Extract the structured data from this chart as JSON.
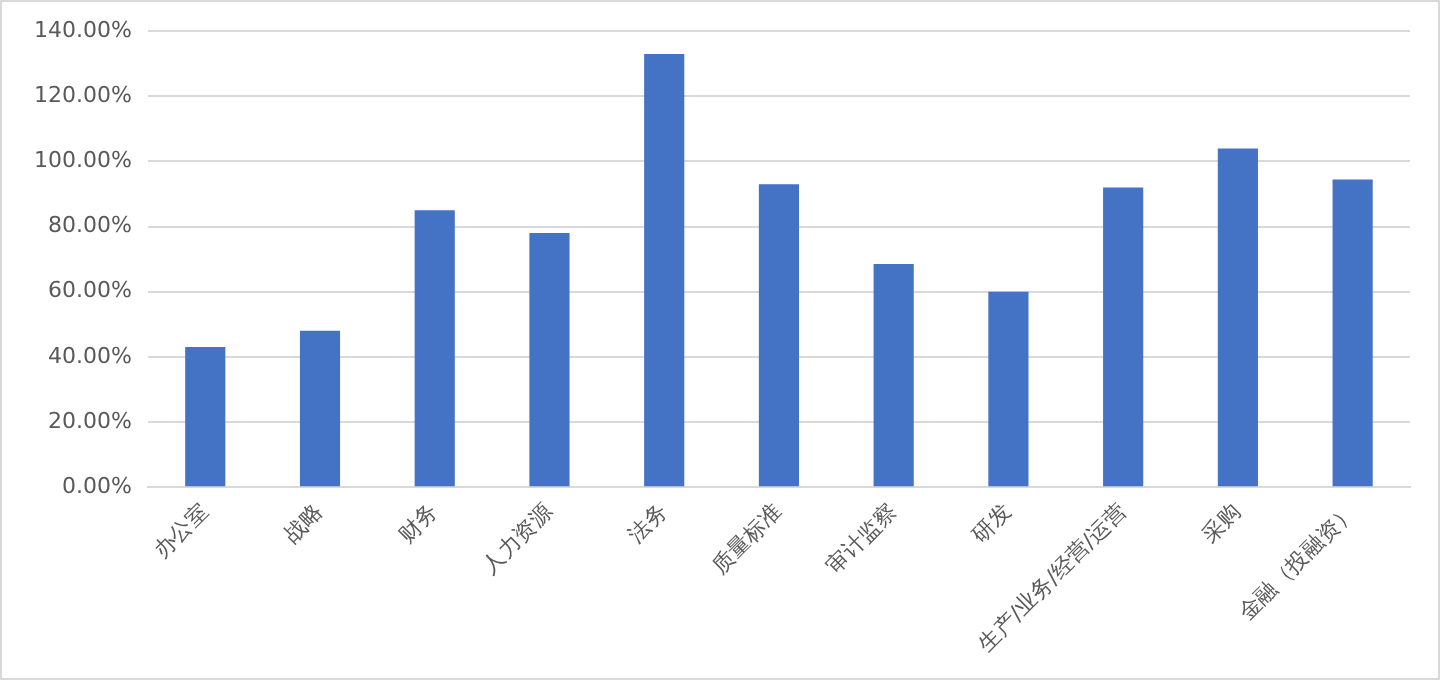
{
  "chart_data": {
    "type": "bar",
    "categories": [
      "办公室",
      "战略",
      "财务",
      "人力资源",
      "法务",
      "质量标准",
      "审计监察",
      "研发",
      "生产/业务/经营/运营",
      "采购",
      "金融（投融资）"
    ],
    "values": [
      43,
      48,
      85,
      78,
      133,
      93,
      68.5,
      60,
      92,
      104,
      94.5
    ],
    "color": "#4472c4",
    "ylim": [
      0,
      140
    ],
    "yticks": [
      {
        "value": 0,
        "label": "0.00%"
      },
      {
        "value": 20,
        "label": "20.00%"
      },
      {
        "value": 40,
        "label": "40.00%"
      },
      {
        "value": 60,
        "label": "60.00%"
      },
      {
        "value": 80,
        "label": "80.00%"
      },
      {
        "value": 100,
        "label": "100.00%"
      },
      {
        "value": 120,
        "label": "120.00%"
      },
      {
        "value": 140,
        "label": "140.00%"
      }
    ],
    "grid": "y"
  }
}
